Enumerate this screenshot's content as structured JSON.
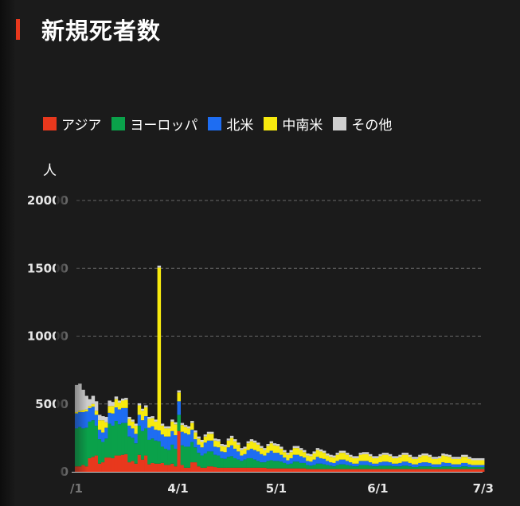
{
  "header": {
    "title": "新規死者数"
  },
  "chart_data": {
    "type": "area",
    "stacked": true,
    "title": "新規死者数",
    "ylabel": "人",
    "xlabel": "",
    "ylim": [
      0,
      20000
    ],
    "yticks": [
      {
        "value": 0,
        "label": "0"
      },
      {
        "value": 5000,
        "label": "5000"
      },
      {
        "value": 10000,
        "label": "10000"
      },
      {
        "value": 15000,
        "label": "15000"
      },
      {
        "value": 20000,
        "label": "20000"
      }
    ],
    "xticks": [
      {
        "date": "2020-03-01",
        "label": "/1"
      },
      {
        "date": "2020-04-01",
        "label": "4/1"
      },
      {
        "date": "2020-05-01",
        "label": "5/1"
      },
      {
        "date": "2020-06-01",
        "label": "6/1"
      },
      {
        "date": "2020-07-03",
        "label": "7/3"
      }
    ],
    "grid": true,
    "legend_position": "top",
    "start_date": "2020-03-01",
    "end_date": "2020-07-03",
    "series": [
      {
        "name": "アジア",
        "color": "#e8381d",
        "values": [
          400,
          400,
          500,
          400,
          1000,
          1100,
          1200,
          600,
          700,
          1050,
          1050,
          1000,
          1200,
          1200,
          1250,
          1300,
          700,
          800,
          600,
          1250,
          900,
          1200,
          550,
          650,
          600,
          600,
          650,
          500,
          500,
          600,
          400,
          3000,
          500,
          300,
          300,
          700,
          700,
          400,
          300,
          300,
          400,
          400,
          350,
          300,
          300,
          300,
          300,
          300,
          300,
          300,
          300,
          300,
          300,
          300,
          300,
          300,
          300,
          300,
          250,
          250,
          250,
          250,
          250,
          250,
          250,
          250,
          250,
          250,
          250,
          250,
          200,
          200,
          200,
          200,
          200,
          200,
          200,
          200,
          200,
          200,
          200,
          200,
          200,
          200,
          200,
          200,
          200,
          200,
          200,
          200,
          200,
          200,
          200,
          200,
          200,
          200,
          200,
          200,
          200,
          200,
          200,
          200,
          200,
          200,
          200,
          200,
          200,
          200,
          200,
          200,
          200,
          200,
          200,
          200,
          200,
          200,
          200,
          200,
          200,
          200,
          200,
          200,
          200,
          200
        ]
      },
      {
        "name": "ヨーロッパ",
        "color": "#0aa14a",
        "values": [
          2800,
          2900,
          2700,
          2850,
          2700,
          2700,
          2200,
          1800,
          1500,
          1400,
          2500,
          2400,
          2550,
          2300,
          2350,
          2300,
          1900,
          1700,
          1500,
          2150,
          2100,
          2000,
          1800,
          1800,
          1700,
          1650,
          1200,
          1200,
          1100,
          1400,
          1300,
          1200,
          1450,
          1550,
          1550,
          1500,
          1100,
          1000,
          900,
          1050,
          1100,
          1100,
          900,
          900,
          700,
          650,
          800,
          850,
          700,
          600,
          500,
          600,
          700,
          700,
          600,
          500,
          400,
          400,
          550,
          600,
          550,
          550,
          500,
          400,
          300,
          350,
          500,
          500,
          400,
          400,
          300,
          250,
          300,
          400,
          400,
          350,
          300,
          250,
          200,
          300,
          350,
          350,
          300,
          250,
          200,
          200,
          300,
          300,
          300,
          250,
          200,
          200,
          250,
          250,
          250,
          250,
          200,
          200,
          200,
          250,
          250,
          200,
          150,
          150,
          200,
          200,
          200,
          200,
          150,
          150,
          150,
          200,
          200,
          200,
          150,
          150,
          150,
          200,
          200,
          150,
          150,
          150,
          150,
          150
        ]
      },
      {
        "name": "北米",
        "color": "#1e6df2",
        "values": [
          1100,
          1100,
          1200,
          1200,
          1000,
          1000,
          800,
          700,
          700,
          800,
          800,
          900,
          1000,
          1100,
          1100,
          1100,
          800,
          700,
          700,
          800,
          800,
          900,
          900,
          900,
          800,
          800,
          900,
          900,
          1000,
          1000,
          1000,
          1000,
          1000,
          1000,
          900,
          900,
          600,
          600,
          600,
          800,
          800,
          800,
          600,
          600,
          500,
          500,
          700,
          800,
          700,
          600,
          400,
          400,
          600,
          700,
          700,
          700,
          600,
          500,
          600,
          700,
          600,
          600,
          500,
          400,
          300,
          400,
          500,
          500,
          500,
          400,
          300,
          300,
          400,
          500,
          400,
          400,
          300,
          250,
          250,
          300,
          350,
          350,
          300,
          250,
          200,
          200,
          300,
          300,
          300,
          250,
          200,
          200,
          250,
          300,
          300,
          250,
          200,
          200,
          250,
          300,
          300,
          250,
          200,
          200,
          250,
          300,
          300,
          250,
          200,
          200,
          200,
          300,
          250,
          250,
          200,
          200,
          200,
          250,
          250,
          200,
          150,
          150,
          150,
          150
        ]
      },
      {
        "name": "中南米",
        "color": "#f7ea0e",
        "values": [
          100,
          100,
          150,
          150,
          150,
          200,
          300,
          700,
          900,
          400,
          500,
          550,
          600,
          500,
          550,
          600,
          500,
          500,
          600,
          700,
          700,
          650,
          650,
          600,
          600,
          12000,
          650,
          600,
          600,
          700,
          800,
          650,
          500,
          450,
          450,
          500,
          500,
          450,
          400,
          450,
          500,
          500,
          450,
          450,
          400,
          400,
          500,
          550,
          550,
          500,
          400,
          400,
          500,
          550,
          550,
          500,
          450,
          400,
          500,
          550,
          550,
          500,
          450,
          400,
          400,
          450,
          500,
          500,
          450,
          400,
          400,
          400,
          450,
          500,
          500,
          450,
          400,
          400,
          400,
          450,
          500,
          500,
          450,
          400,
          400,
          400,
          450,
          500,
          500,
          450,
          400,
          400,
          450,
          500,
          500,
          450,
          400,
          400,
          450,
          500,
          500,
          450,
          400,
          400,
          450,
          500,
          500,
          450,
          400,
          400,
          450,
          500,
          500,
          450,
          400,
          400,
          400,
          450,
          450,
          400,
          350,
          350,
          350,
          350
        ]
      },
      {
        "name": "その他",
        "color": "#cfcfcf",
        "values": [
          2000,
          2000,
          1500,
          1000,
          500,
          600,
          700,
          400,
          300,
          400,
          400,
          300,
          200,
          150,
          150,
          150,
          150,
          150,
          150,
          150,
          150,
          150,
          150,
          150,
          150,
          150,
          150,
          150,
          150,
          150,
          150,
          150,
          150,
          150,
          150,
          150,
          150,
          150,
          150,
          150,
          150,
          150,
          150,
          150,
          150,
          150,
          150,
          150,
          150,
          150,
          150,
          150,
          150,
          150,
          150,
          150,
          150,
          150,
          150,
          150,
          150,
          150,
          150,
          150,
          150,
          150,
          150,
          150,
          150,
          150,
          150,
          150,
          150,
          150,
          150,
          150,
          150,
          150,
          150,
          150,
          150,
          150,
          150,
          150,
          150,
          150,
          150,
          150,
          150,
          150,
          150,
          150,
          150,
          150,
          150,
          150,
          150,
          150,
          150,
          150,
          150,
          150,
          150,
          150,
          150,
          150,
          150,
          150,
          150,
          150,
          150,
          150,
          150,
          150,
          150,
          150,
          150,
          150,
          150,
          150,
          150,
          150,
          150,
          150
        ]
      }
    ]
  }
}
